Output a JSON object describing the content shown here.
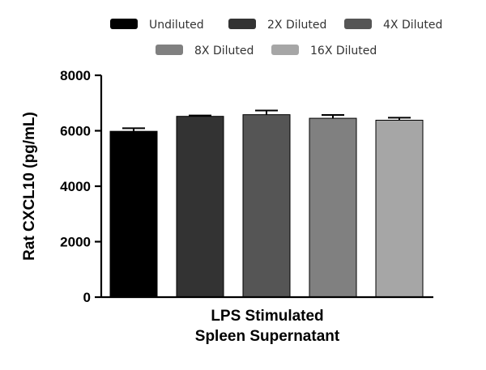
{
  "chart_data": {
    "type": "bar",
    "title": "",
    "xlabel": [
      "LPS Stimulated",
      "Spleen Supernatant"
    ],
    "ylabel": "Rat  CXCL10 (pg/mL)",
    "ylim": [
      0,
      8000
    ],
    "yticks": [
      0,
      2000,
      4000,
      6000,
      8000
    ],
    "grid": false,
    "legend_position": "top",
    "series": [
      {
        "name": "Undiluted",
        "value": 5980,
        "error": 110,
        "color": "#000000"
      },
      {
        "name": "2X Diluted",
        "value": 6520,
        "error": 30,
        "color": "#333333"
      },
      {
        "name": "4X Diluted",
        "value": 6580,
        "error": 150,
        "color": "#555555"
      },
      {
        "name": "8X Diluted",
        "value": 6450,
        "error": 120,
        "color": "#808080"
      },
      {
        "name": "16X Diluted",
        "value": 6380,
        "error": 90,
        "color": "#a6a6a6"
      }
    ]
  }
}
